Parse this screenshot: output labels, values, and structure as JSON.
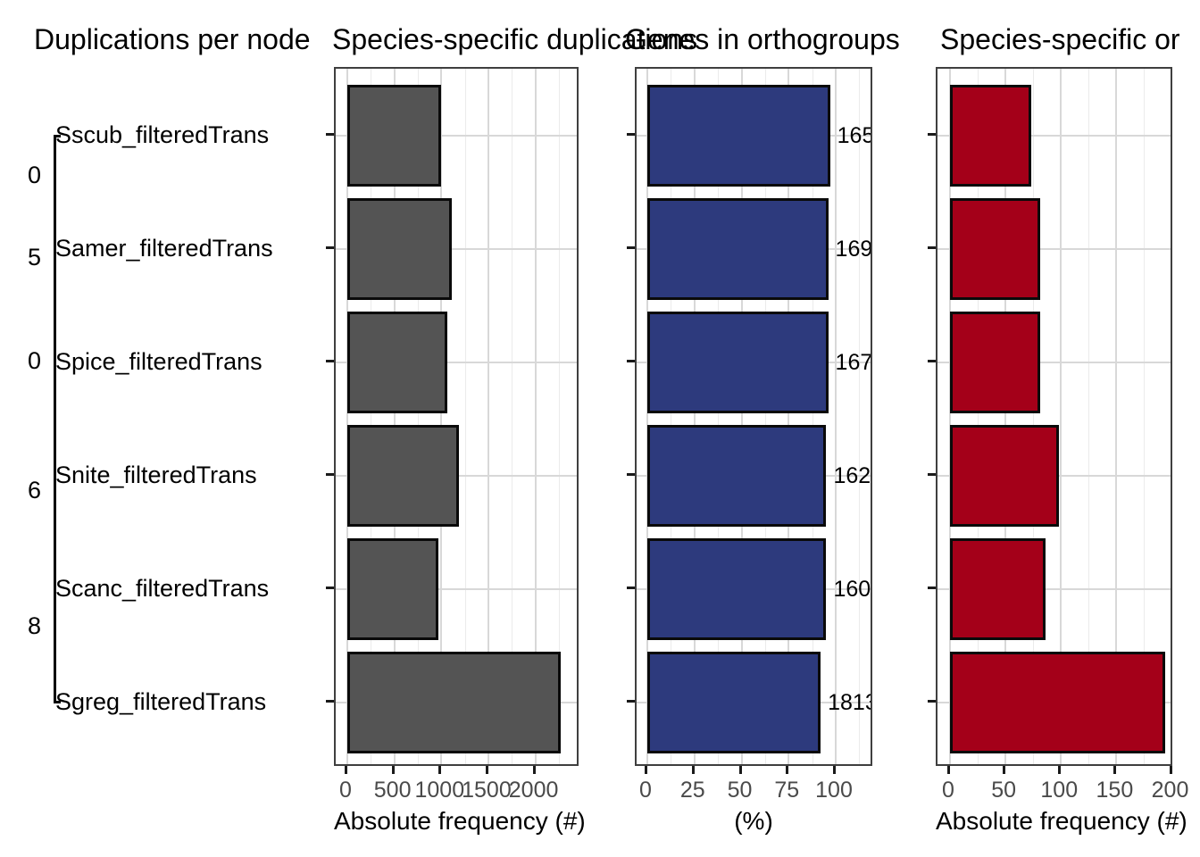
{
  "titles": {
    "panel_tree": "Duplications per node",
    "panel_gray": "Species-specific duplications",
    "panel_blue": "Genes in orthogroups",
    "panel_red": "Species-specific or"
  },
  "tree": {
    "tips": [
      "Sscub_filteredTrans",
      "Samer_filteredTrans",
      "Spice_filteredTrans",
      "Snite_filteredTrans",
      "Scanc_filteredTrans",
      "Sgreg_filteredTrans"
    ],
    "node_labels": [
      "0",
      "5",
      "0",
      "6",
      "8"
    ]
  },
  "chart_data": [
    {
      "type": "bar",
      "orientation": "horizontal",
      "title": "Species-specific duplications",
      "categories": [
        "Sscub_filteredTrans",
        "Samer_filteredTrans",
        "Spice_filteredTrans",
        "Snite_filteredTrans",
        "Scanc_filteredTrans",
        "Sgreg_filteredTrans"
      ],
      "values": [
        1000,
        1113,
        1066,
        1189,
        972,
        2274
      ],
      "xlabel": "Absolute frequency (#)",
      "xticks": [
        0,
        500,
        1000,
        1500,
        2000
      ],
      "xticks_minor": [
        250,
        750,
        1250,
        1750,
        2250
      ],
      "xlim": [
        -125,
        2480
      ],
      "bar_color": "#545454",
      "grid": true,
      "legend": "none"
    },
    {
      "type": "bar",
      "orientation": "horizontal",
      "title": "Genes in orthogroups",
      "categories": [
        "Sscub_filteredTrans",
        "Samer_filteredTrans",
        "Spice_filteredTrans",
        "Snite_filteredTrans",
        "Scanc_filteredTrans",
        "Sgreg_filteredTrans"
      ],
      "values": [
        97,
        96,
        96,
        95,
        95,
        92
      ],
      "bar_labels": [
        "165",
        "169",
        "167",
        "162",
        "160",
        "1813"
      ],
      "xlabel": "(%)",
      "xticks": [
        0,
        25,
        50,
        75,
        100
      ],
      "xticks_minor": [
        12.5,
        37.5,
        62.5,
        87.5,
        112.5
      ],
      "xlim": [
        -6,
        121
      ],
      "bar_color": "#2d3a7d",
      "grid": true,
      "legend": "none"
    },
    {
      "type": "bar",
      "orientation": "horizontal",
      "title": "Species-specific or",
      "categories": [
        "Sscub_filteredTrans",
        "Samer_filteredTrans",
        "Spice_filteredTrans",
        "Snite_filteredTrans",
        "Scanc_filteredTrans",
        "Sgreg_filteredTrans"
      ],
      "values": [
        73,
        81,
        81,
        98,
        86,
        194
      ],
      "xlabel": "Absolute frequency (#)",
      "xticks": [
        0,
        50,
        100,
        150,
        200
      ],
      "xticks_minor": [
        25,
        75,
        125,
        175
      ],
      "xlim": [
        -11,
        202
      ],
      "bar_color": "#a40019",
      "grid": true,
      "legend": "none"
    }
  ]
}
